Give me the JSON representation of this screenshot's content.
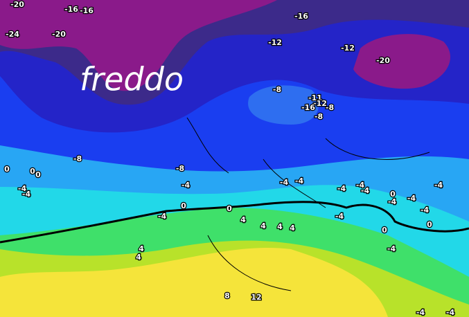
{
  "map": {
    "headline": "freddo",
    "contour_labels": [
      -20,
      -16,
      -16,
      -24,
      -20,
      -16,
      -12,
      -12,
      -20,
      -8,
      -11,
      -12,
      -16,
      -8,
      -8,
      -8,
      -8,
      0,
      0,
      0,
      -4,
      -4,
      -4,
      -4,
      -4,
      -4,
      -4,
      -4,
      0,
      -4,
      -4,
      -4,
      -4,
      0,
      0,
      -4,
      4,
      4,
      4,
      4,
      -4,
      0,
      0,
      -4,
      4,
      4,
      8,
      12,
      -4,
      -4
    ]
  }
}
